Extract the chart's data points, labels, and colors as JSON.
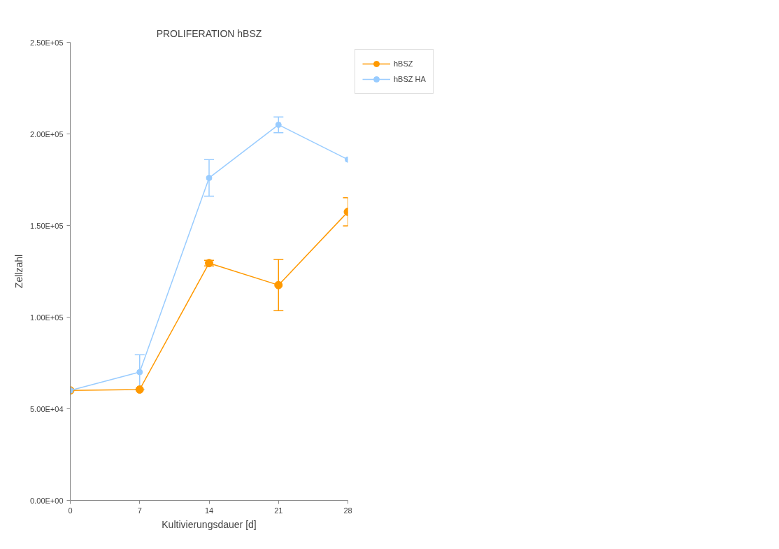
{
  "chart_data": {
    "type": "line",
    "title": "PROLIFERATION hBSZ",
    "xlabel": "Kultivierungsdauer [d]",
    "ylabel": "Zellzahl",
    "x": [
      0,
      7,
      14,
      21,
      28
    ],
    "series": [
      {
        "name": "hBSZ",
        "color": "#ff9900",
        "values": [
          60000,
          60500,
          129500,
          117500,
          157500
        ],
        "errors": [
          null,
          null,
          1500,
          14000,
          7700
        ]
      },
      {
        "name": "hBSZ HA",
        "color": "#99ccff",
        "values": [
          60000,
          70000,
          176000,
          205000,
          186000
        ],
        "errors": [
          null,
          9500,
          10000,
          4300,
          null
        ]
      }
    ],
    "xlim": [
      0,
      28
    ],
    "xticks": [
      0,
      7,
      14,
      21,
      28
    ],
    "ylim": [
      0,
      250000
    ],
    "yticks": [
      {
        "value": 0,
        "label": "0.00E+00"
      },
      {
        "value": 50000,
        "label": "5.00E+04"
      },
      {
        "value": 100000,
        "label": "1.00E+05"
      },
      {
        "value": 150000,
        "label": "1.50E+05"
      },
      {
        "value": 200000,
        "label": "2.00E+05"
      },
      {
        "value": 250000,
        "label": "2.50E+05"
      }
    ],
    "grid": false,
    "legend": "top right",
    "marker": "circle",
    "line_style": "solid"
  }
}
